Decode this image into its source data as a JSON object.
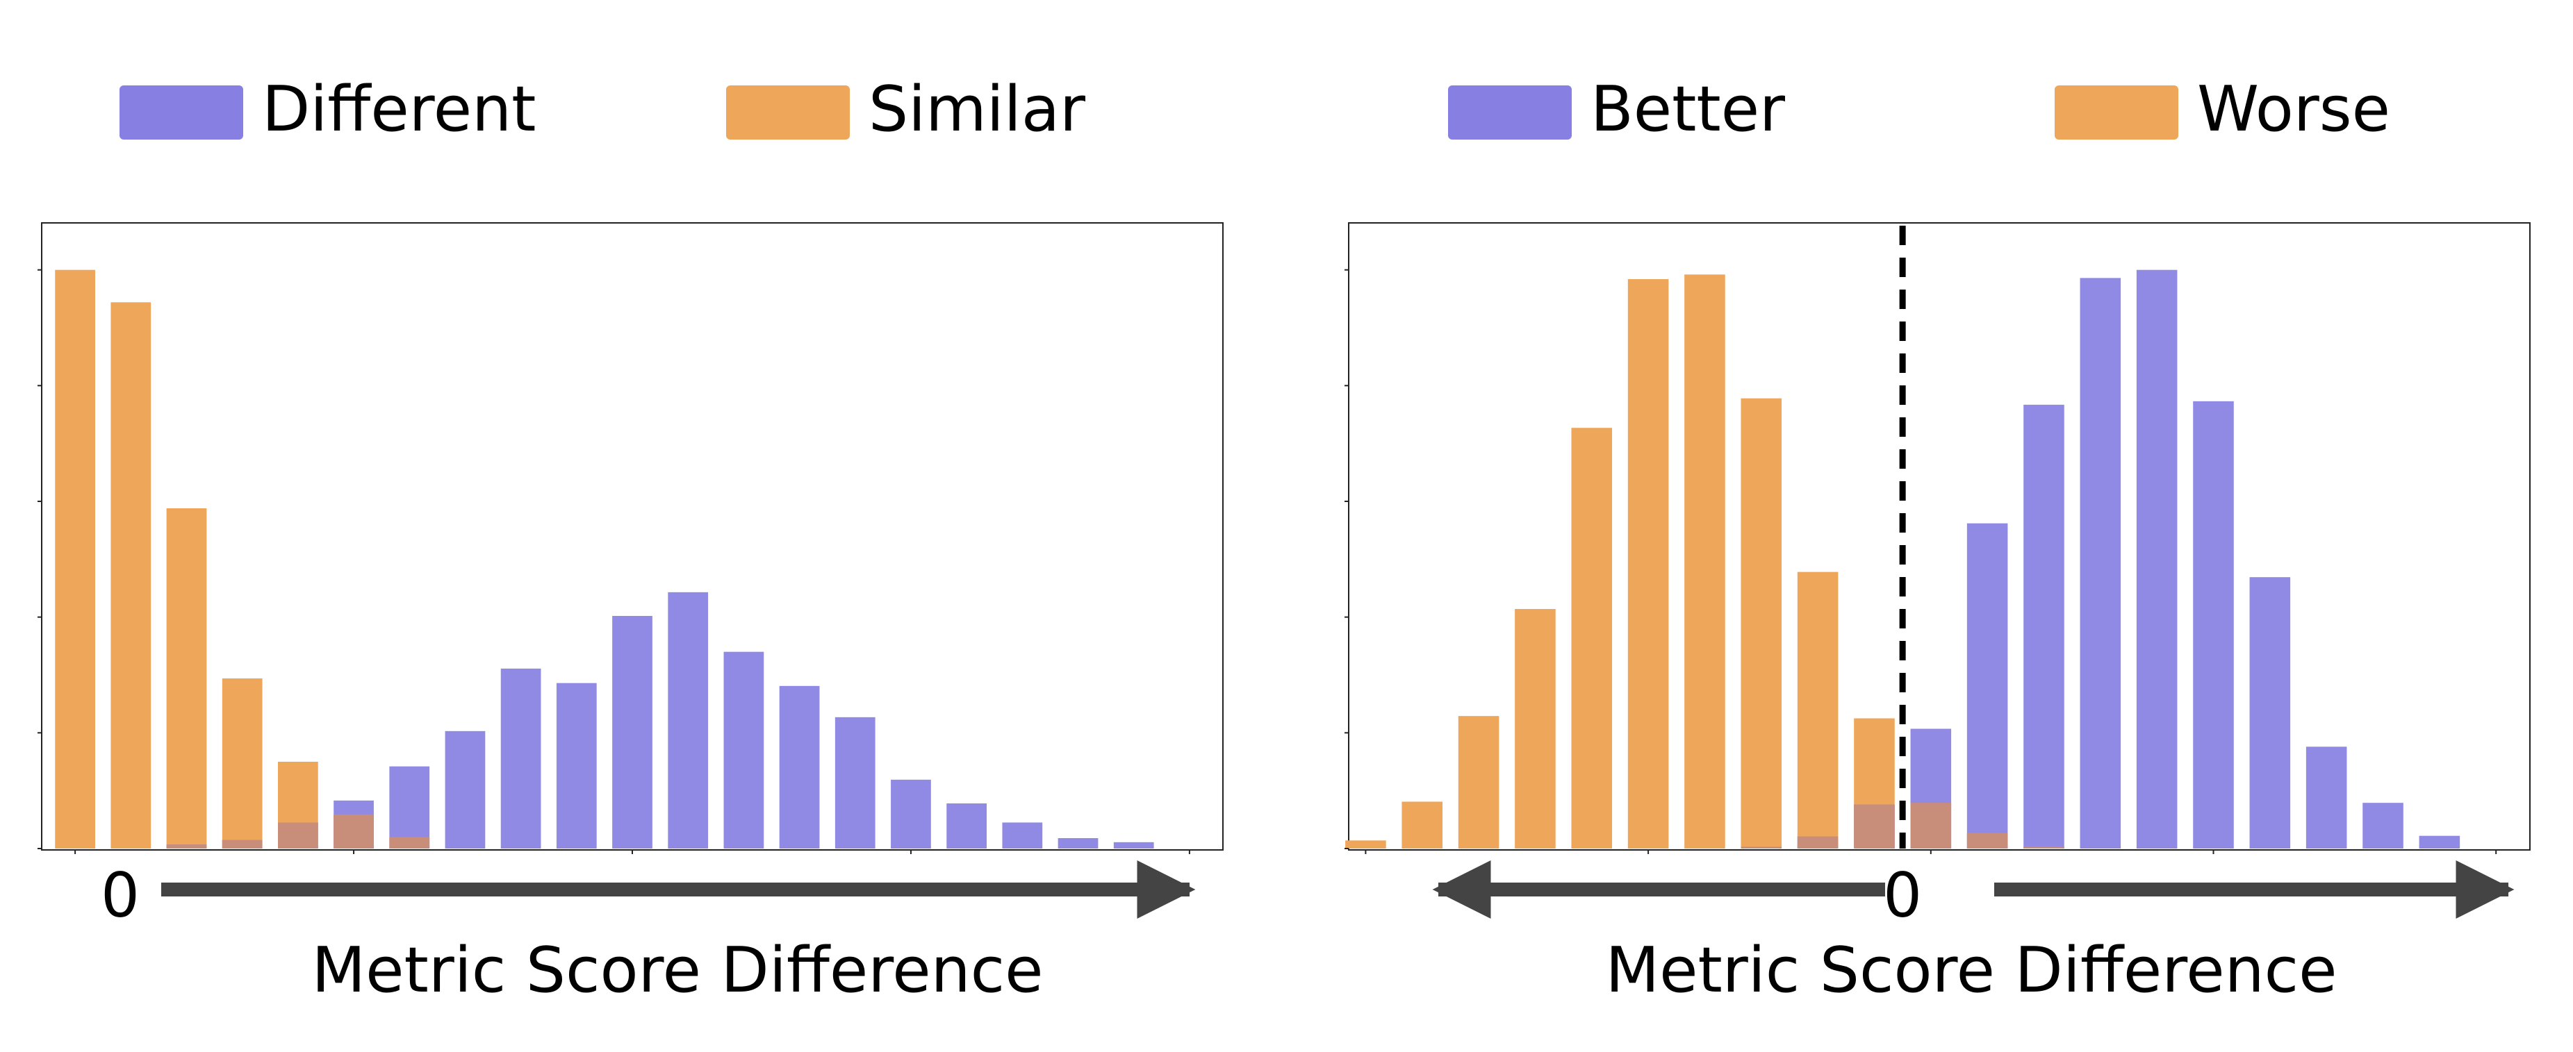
{
  "chart_data": [
    {
      "type": "bar",
      "title": "",
      "xlabel": "Metric Score Difference",
      "ylabel": "",
      "zero_label": "0",
      "legend": [
        "Different",
        "Similar"
      ],
      "colors": {
        "Different": "#8780e2",
        "Similar": "#eea65b"
      },
      "xlim": [
        -0.6,
        20.6
      ],
      "ylim": [
        0,
        1.05
      ],
      "x": [
        0,
        1,
        2,
        3,
        4,
        5,
        6,
        7,
        8,
        9,
        10,
        11,
        12,
        13,
        14,
        15,
        16,
        17,
        18,
        19,
        20
      ],
      "series": [
        {
          "name": "Similar",
          "values": [
            1.0,
            0.944,
            0.588,
            0.294,
            0.15,
            0.059,
            0.02,
            0,
            0,
            0,
            0,
            0,
            0,
            0,
            0,
            0,
            0,
            0,
            0,
            0,
            0
          ]
        },
        {
          "name": "Different",
          "values": [
            0,
            0,
            0.007,
            0.015,
            0.045,
            0.083,
            0.142,
            0.203,
            0.311,
            0.286,
            0.402,
            0.443,
            0.34,
            0.281,
            0.227,
            0.119,
            0.078,
            0.045,
            0.018,
            0.011,
            0
          ]
        }
      ]
    },
    {
      "type": "bar",
      "title": "",
      "xlabel": "Metric Score Difference",
      "ylabel": "",
      "zero_label": "0",
      "legend": [
        "Better",
        "Worse"
      ],
      "colors": {
        "Better": "#8780e2",
        "Worse": "#eea65b"
      },
      "xlim": [
        -10.3,
        10.6
      ],
      "ylim": [
        0,
        1.05
      ],
      "x": [
        -10,
        -9,
        -8,
        -7,
        -6,
        -5,
        -4,
        -3,
        -2,
        -1,
        0,
        1,
        2,
        3,
        4,
        5,
        6,
        7,
        8,
        9,
        10
      ],
      "series": [
        {
          "name": "Worse",
          "values": [
            0.014,
            0.081,
            0.229,
            0.414,
            0.727,
            0.984,
            0.992,
            0.778,
            0.478,
            0.225,
            0.079,
            0.027,
            0.003,
            0,
            0,
            0,
            0,
            0,
            0,
            0,
            0
          ]
        },
        {
          "name": "Better",
          "values": [
            0,
            0,
            0,
            0,
            0,
            0,
            0,
            0.003,
            0.021,
            0.076,
            0.207,
            0.562,
            0.767,
            0.986,
            1.0,
            0.773,
            0.469,
            0.176,
            0.079,
            0.022,
            0
          ]
        }
      ]
    }
  ]
}
